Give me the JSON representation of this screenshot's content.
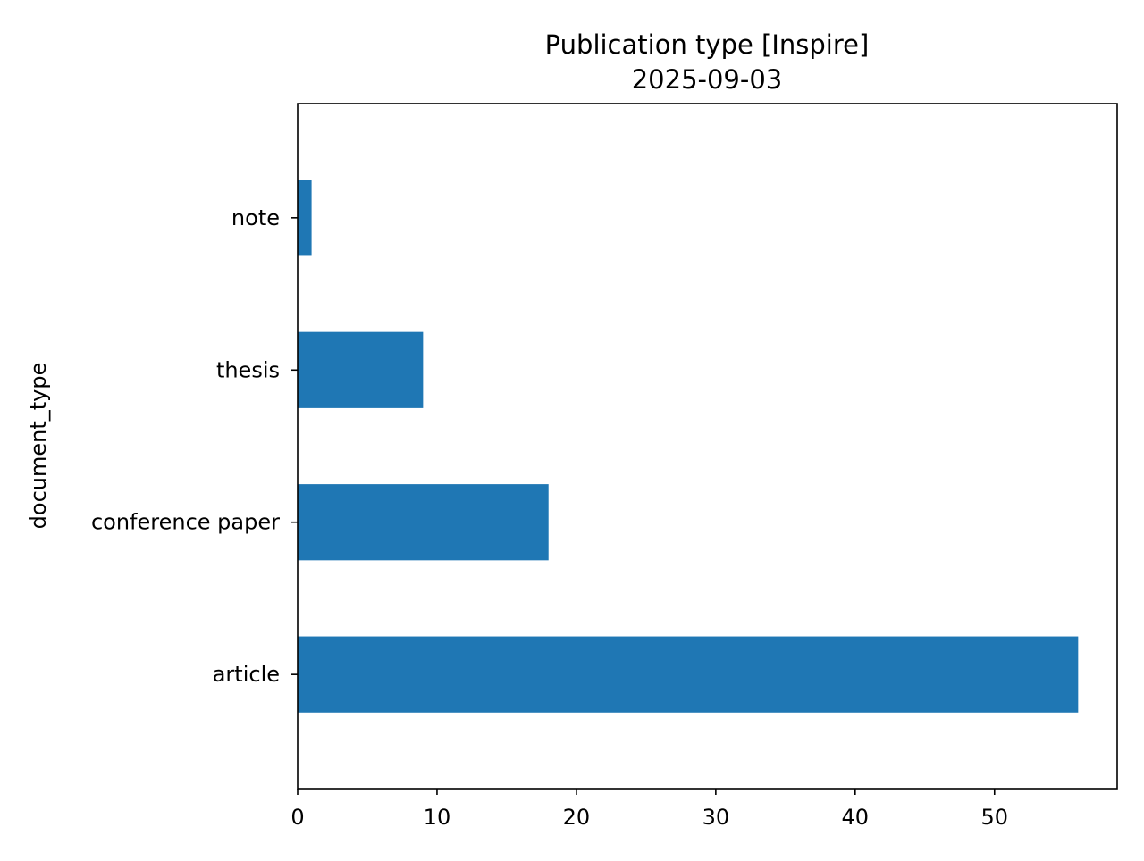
{
  "chart_data": {
    "type": "bar",
    "orientation": "horizontal",
    "title": "Publication type [Inspire]",
    "subtitle": "2025-09-03",
    "xlabel": "",
    "ylabel": "document_type",
    "categories": [
      "article",
      "conference paper",
      "thesis",
      "note"
    ],
    "values": [
      56,
      18,
      9,
      1
    ],
    "xlim": [
      0,
      58.8
    ],
    "xticks": [
      0,
      10,
      20,
      30,
      40,
      50
    ],
    "grid": false,
    "legend": "none",
    "bar_color": "#1f77b4"
  }
}
